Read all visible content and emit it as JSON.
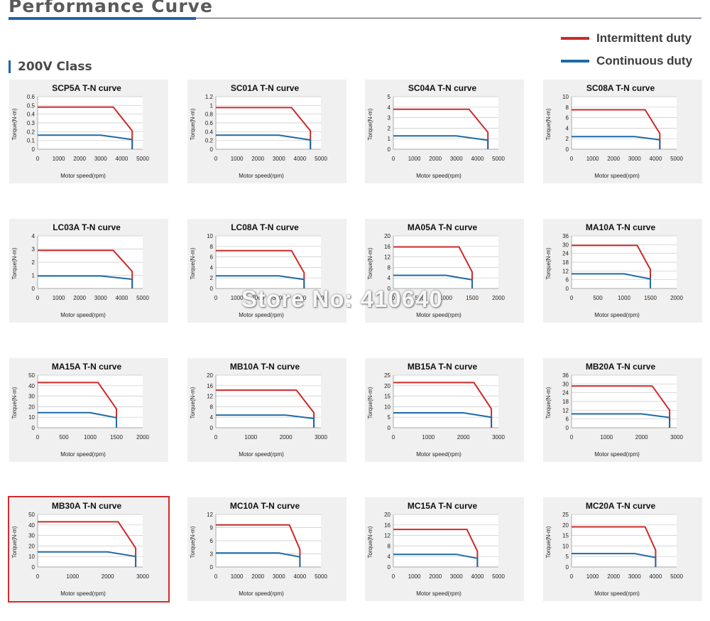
{
  "page": {
    "title": "Performance Curve",
    "class_label": "200V Class",
    "watermark": "Store No: 410640"
  },
  "legend": [
    {
      "label": "Intermittent duty",
      "color": "#cc2a2a"
    },
    {
      "label": "Continuous duty",
      "color": "#1e6aa6"
    }
  ],
  "colors": {
    "intermittent": "#cc2a2a",
    "continuous": "#1e6aa6",
    "highlight": "#d22b2b"
  },
  "chart_data": [
    {
      "type": "line",
      "title": "SCP5A T-N curve",
      "xlabel": "Motor speed(rpm)",
      "ylabel": "Torque(N-m)",
      "xlim": [
        0,
        5000
      ],
      "xticks": [
        0,
        1000,
        2000,
        3000,
        4000,
        5000
      ],
      "ylim": [
        0,
        0.6
      ],
      "yticks": [
        0,
        0.1,
        0.2,
        0.3,
        0.4,
        0.5,
        0.6
      ],
      "series": [
        {
          "name": "Intermittent duty",
          "x": [
            0,
            3600,
            4500,
            4500
          ],
          "y": [
            0.48,
            0.48,
            0.21,
            0
          ]
        },
        {
          "name": "Continuous duty",
          "x": [
            0,
            3000,
            4500,
            4500
          ],
          "y": [
            0.16,
            0.16,
            0.11,
            0
          ]
        }
      ]
    },
    {
      "type": "line",
      "title": "SC01A T-N curve",
      "xlabel": "Motor speed(rpm)",
      "ylabel": "Torque(N-m)",
      "xlim": [
        0,
        5000
      ],
      "xticks": [
        0,
        1000,
        2000,
        3000,
        4000,
        5000
      ],
      "ylim": [
        0,
        1.2
      ],
      "yticks": [
        0,
        0.2,
        0.4,
        0.6,
        0.8,
        1,
        1.2
      ],
      "series": [
        {
          "name": "Intermittent duty",
          "x": [
            0,
            3600,
            4500,
            4500
          ],
          "y": [
            0.95,
            0.95,
            0.42,
            0
          ]
        },
        {
          "name": "Continuous duty",
          "x": [
            0,
            3000,
            4500,
            4500
          ],
          "y": [
            0.32,
            0.32,
            0.21,
            0
          ]
        }
      ]
    },
    {
      "type": "line",
      "title": "SC04A T-N curve",
      "xlabel": "Motor speed(rpm)",
      "ylabel": "Torque(N-m)",
      "xlim": [
        0,
        5000
      ],
      "xticks": [
        0,
        1000,
        2000,
        3000,
        4000,
        5000
      ],
      "ylim": [
        0,
        5
      ],
      "yticks": [
        0,
        1,
        2,
        3,
        4,
        5
      ],
      "series": [
        {
          "name": "Intermittent duty",
          "x": [
            0,
            3600,
            4500,
            4500
          ],
          "y": [
            3.8,
            3.8,
            1.6,
            0
          ]
        },
        {
          "name": "Continuous duty",
          "x": [
            0,
            3000,
            4500,
            4500
          ],
          "y": [
            1.27,
            1.27,
            0.85,
            0
          ]
        }
      ]
    },
    {
      "type": "line",
      "title": "SC08A T-N curve",
      "xlabel": "Motor speed(rpm)",
      "ylabel": "Torque(N-m)",
      "xlim": [
        0,
        5000
      ],
      "xticks": [
        0,
        1000,
        2000,
        3000,
        4000,
        5000
      ],
      "ylim": [
        0,
        10
      ],
      "yticks": [
        0,
        2,
        4,
        6,
        8,
        10
      ],
      "series": [
        {
          "name": "Intermittent duty",
          "x": [
            0,
            3500,
            4200,
            4200
          ],
          "y": [
            7.5,
            7.5,
            3.0,
            0
          ]
        },
        {
          "name": "Continuous duty",
          "x": [
            0,
            3000,
            4200,
            4200
          ],
          "y": [
            2.4,
            2.4,
            1.8,
            0
          ]
        }
      ]
    },
    {
      "type": "line",
      "title": "LC03A T-N curve",
      "xlabel": "Motor speed(rpm)",
      "ylabel": "Torque(N-m)",
      "xlim": [
        0,
        5000
      ],
      "xticks": [
        0,
        1000,
        2000,
        3000,
        4000,
        5000
      ],
      "ylim": [
        0,
        4
      ],
      "yticks": [
        0,
        1,
        2,
        3,
        4
      ],
      "series": [
        {
          "name": "Intermittent duty",
          "x": [
            0,
            3600,
            4500,
            4500
          ],
          "y": [
            2.9,
            2.9,
            1.3,
            0
          ]
        },
        {
          "name": "Continuous duty",
          "x": [
            0,
            3000,
            4500,
            4500
          ],
          "y": [
            0.95,
            0.95,
            0.7,
            0
          ]
        }
      ]
    },
    {
      "type": "line",
      "title": "LC08A T-N curve",
      "xlabel": "Motor speed(rpm)",
      "ylabel": "Torque(N-m)",
      "xlim": [
        0,
        5000
      ],
      "xticks": [
        0,
        1000,
        2000,
        3000,
        4000,
        5000
      ],
      "ylim": [
        0,
        10
      ],
      "yticks": [
        0,
        2,
        4,
        6,
        8,
        10
      ],
      "series": [
        {
          "name": "Intermittent duty",
          "x": [
            0,
            3600,
            4200,
            4200
          ],
          "y": [
            7.2,
            7.2,
            3.0,
            0
          ]
        },
        {
          "name": "Continuous duty",
          "x": [
            0,
            3000,
            4200,
            4200
          ],
          "y": [
            2.4,
            2.4,
            1.7,
            0
          ]
        }
      ]
    },
    {
      "type": "line",
      "title": "MA05A T-N curve",
      "xlabel": "Motor speed(rpm)",
      "ylabel": "Torque(N-m)",
      "xlim": [
        0,
        2000
      ],
      "xticks": [
        0,
        500,
        1000,
        1500,
        2000
      ],
      "ylim": [
        0,
        20
      ],
      "yticks": [
        0,
        4,
        8,
        12,
        16,
        20
      ],
      "series": [
        {
          "name": "Intermittent duty",
          "x": [
            0,
            1250,
            1500,
            1500
          ],
          "y": [
            15.8,
            15.8,
            6.3,
            0
          ]
        },
        {
          "name": "Continuous duty",
          "x": [
            0,
            1000,
            1500,
            1500
          ],
          "y": [
            5.0,
            5.0,
            3.3,
            0
          ]
        }
      ]
    },
    {
      "type": "line",
      "title": "MA10A T-N curve",
      "xlabel": "Motor speed(rpm)",
      "ylabel": "Torque(N-m)",
      "xlim": [
        0,
        2000
      ],
      "xticks": [
        0,
        500,
        1000,
        1500,
        2000
      ],
      "ylim": [
        0,
        36
      ],
      "yticks": [
        0,
        6,
        12,
        18,
        24,
        30,
        36
      ],
      "series": [
        {
          "name": "Intermittent duty",
          "x": [
            0,
            1250,
            1500,
            1500
          ],
          "y": [
            29.5,
            29.5,
            13.0,
            0
          ]
        },
        {
          "name": "Continuous duty",
          "x": [
            0,
            1000,
            1500,
            1500
          ],
          "y": [
            10.0,
            10.0,
            6.5,
            0
          ]
        }
      ]
    },
    {
      "type": "line",
      "title": "MA15A T-N curve",
      "xlabel": "Motor speed(rpm)",
      "ylabel": "Torque(N-m)",
      "xlim": [
        0,
        2000
      ],
      "xticks": [
        0,
        500,
        1000,
        1500,
        2000
      ],
      "ylim": [
        0,
        50
      ],
      "yticks": [
        0,
        10,
        20,
        30,
        40,
        50
      ],
      "series": [
        {
          "name": "Intermittent duty",
          "x": [
            0,
            1150,
            1500,
            1500
          ],
          "y": [
            43,
            43,
            18,
            0
          ]
        },
        {
          "name": "Continuous duty",
          "x": [
            0,
            1000,
            1500,
            1500
          ],
          "y": [
            14.3,
            14.3,
            9.5,
            0
          ]
        }
      ]
    },
    {
      "type": "line",
      "title": "MB10A T-N curve",
      "xlabel": "Motor speed(rpm)",
      "ylabel": "Torque(N-m)",
      "xlim": [
        0,
        3000
      ],
      "xticks": [
        0,
        1000,
        2000,
        3000
      ],
      "ylim": [
        0,
        20
      ],
      "yticks": [
        0,
        4,
        8,
        12,
        16,
        20
      ],
      "series": [
        {
          "name": "Intermittent duty",
          "x": [
            0,
            2300,
            2800,
            2800
          ],
          "y": [
            14.3,
            14.3,
            5.7,
            0
          ]
        },
        {
          "name": "Continuous duty",
          "x": [
            0,
            2000,
            2800,
            2800
          ],
          "y": [
            4.8,
            4.8,
            3.5,
            0
          ]
        }
      ]
    },
    {
      "type": "line",
      "title": "MB15A T-N curve",
      "xlabel": "Motor speed(rpm)",
      "ylabel": "Torque(N-m)",
      "xlim": [
        0,
        3000
      ],
      "xticks": [
        0,
        1000,
        2000,
        3000
      ],
      "ylim": [
        0,
        25
      ],
      "yticks": [
        0,
        5,
        10,
        15,
        20,
        25
      ],
      "series": [
        {
          "name": "Intermittent duty",
          "x": [
            0,
            2300,
            2800,
            2800
          ],
          "y": [
            21.5,
            21.5,
            9.0,
            0
          ]
        },
        {
          "name": "Continuous duty",
          "x": [
            0,
            2000,
            2800,
            2800
          ],
          "y": [
            7.1,
            7.1,
            5.0,
            0
          ]
        }
      ]
    },
    {
      "type": "line",
      "title": "MB20A T-N curve",
      "xlabel": "Motor speed(rpm)",
      "ylabel": "Torque(N-m)",
      "xlim": [
        0,
        3000
      ],
      "xticks": [
        0,
        1000,
        2000,
        3000
      ],
      "ylim": [
        0,
        36
      ],
      "yticks": [
        0,
        6,
        12,
        18,
        24,
        30,
        36
      ],
      "series": [
        {
          "name": "Intermittent duty",
          "x": [
            0,
            2300,
            2800,
            2800
          ],
          "y": [
            28.6,
            28.6,
            12.0,
            0
          ]
        },
        {
          "name": "Continuous duty",
          "x": [
            0,
            2000,
            2800,
            2800
          ],
          "y": [
            9.5,
            9.5,
            7.0,
            0
          ]
        }
      ]
    },
    {
      "type": "line",
      "title": "MB30A T-N curve",
      "xlabel": "Motor speed(rpm)",
      "ylabel": "Torque(N-m)",
      "xlim": [
        0,
        3000
      ],
      "xticks": [
        0,
        1000,
        2000,
        3000
      ],
      "ylim": [
        0,
        50
      ],
      "yticks": [
        0,
        10,
        20,
        30,
        40,
        50
      ],
      "series": [
        {
          "name": "Intermittent duty",
          "x": [
            0,
            2300,
            2800,
            2800
          ],
          "y": [
            43,
            43,
            18,
            0
          ]
        },
        {
          "name": "Continuous duty",
          "x": [
            0,
            2000,
            2800,
            2800
          ],
          "y": [
            14.3,
            14.3,
            10,
            0
          ]
        }
      ]
    },
    {
      "type": "line",
      "title": "MC10A T-N curve",
      "xlabel": "Motor speed(rpm)",
      "ylabel": "Torque(N-m)",
      "xlim": [
        0,
        5000
      ],
      "xticks": [
        0,
        1000,
        2000,
        3000,
        4000,
        5000
      ],
      "ylim": [
        0,
        12
      ],
      "yticks": [
        0,
        3,
        6,
        9,
        12
      ],
      "series": [
        {
          "name": "Intermittent duty",
          "x": [
            0,
            3500,
            4000,
            4000
          ],
          "y": [
            9.6,
            9.6,
            4.0,
            0
          ]
        },
        {
          "name": "Continuous duty",
          "x": [
            0,
            3000,
            4000,
            4000
          ],
          "y": [
            3.2,
            3.2,
            2.3,
            0
          ]
        }
      ]
    },
    {
      "type": "line",
      "title": "MC15A T-N curve",
      "xlabel": "Motor speed(rpm)",
      "ylabel": "Torque(N-m)",
      "xlim": [
        0,
        5000
      ],
      "xticks": [
        0,
        1000,
        2000,
        3000,
        4000,
        5000
      ],
      "ylim": [
        0,
        20
      ],
      "yticks": [
        0,
        4,
        8,
        12,
        16,
        20
      ],
      "series": [
        {
          "name": "Intermittent duty",
          "x": [
            0,
            3500,
            4000,
            4000
          ],
          "y": [
            14.3,
            14.3,
            6.0,
            0
          ]
        },
        {
          "name": "Continuous duty",
          "x": [
            0,
            3000,
            4000,
            4000
          ],
          "y": [
            4.8,
            4.8,
            3.3,
            0
          ]
        }
      ]
    },
    {
      "type": "line",
      "title": "MC20A T-N curve",
      "xlabel": "Motor speed(rpm)",
      "ylabel": "Torque(N-m)",
      "xlim": [
        0,
        5000
      ],
      "xticks": [
        0,
        1000,
        2000,
        3000,
        4000,
        5000
      ],
      "ylim": [
        0,
        25
      ],
      "yticks": [
        0,
        5,
        10,
        15,
        20,
        25
      ],
      "series": [
        {
          "name": "Intermittent duty",
          "x": [
            0,
            3500,
            4000,
            4000
          ],
          "y": [
            19.1,
            19.1,
            8.0,
            0
          ]
        },
        {
          "name": "Continuous duty",
          "x": [
            0,
            3000,
            4000,
            4000
          ],
          "y": [
            6.4,
            6.4,
            4.5,
            0
          ]
        }
      ]
    }
  ]
}
